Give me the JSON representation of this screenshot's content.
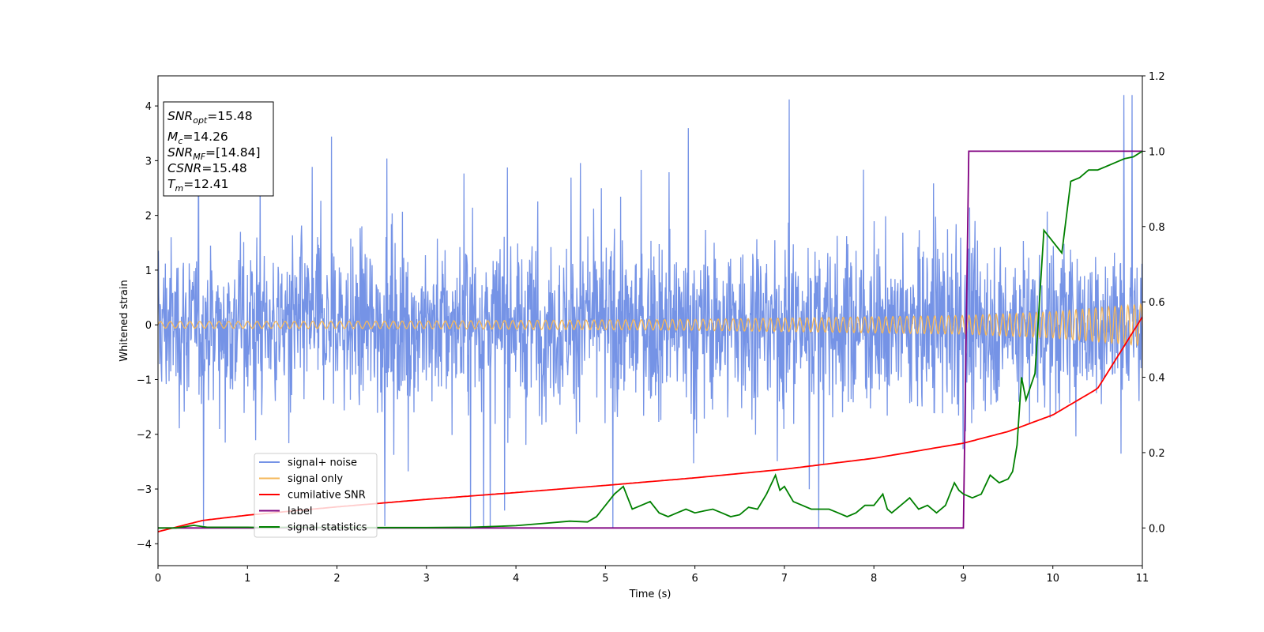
{
  "chart_data": {
    "type": "line",
    "xlabel": "Time (s)",
    "ylabel": "Whitened strain",
    "xlim": [
      0,
      11
    ],
    "ylim": [
      -4.4,
      4.55
    ],
    "y2lim": [
      -0.1,
      1.2
    ],
    "xticks": [
      "0",
      "1",
      "2",
      "3",
      "4",
      "5",
      "6",
      "7",
      "8",
      "9",
      "10",
      "11"
    ],
    "yticks": [
      "−4",
      "−3",
      "−2",
      "−1",
      "0",
      "1",
      "2",
      "3",
      "4"
    ],
    "y2ticks": [
      "0.0",
      "0.2",
      "0.4",
      "0.6",
      "0.8",
      "1.0",
      "1.2"
    ],
    "grid": false,
    "legend_position": "lower-left",
    "annotation": {
      "snr_opt": {
        "base": "SNR",
        "sub": "opt",
        "value": "=15.48"
      },
      "mc": {
        "base": "M",
        "sub": "c",
        "value": "=14.26"
      },
      "snr_mf": {
        "base": "SNR",
        "sub": "MF",
        "value": "=[14.84]"
      },
      "csnr": {
        "base": "CSNR",
        "value": "=15.48"
      },
      "tm": {
        "base": "T",
        "sub": "m",
        "value": "=12.41"
      }
    },
    "series": [
      {
        "name": "signal+ noise",
        "color": "#7593e6",
        "axis": "left",
        "description": "whitened noise with signal, amplitude roughly within -3.7 to 4.2 across 0-11 s",
        "envelope": {
          "x": [
            0,
            11
          ],
          "low": -3.7,
          "high": 4.2
        }
      },
      {
        "name": "signal only",
        "color": "#f5b75a",
        "axis": "left",
        "description": "chirp oscillation, amplitude growing with time",
        "amplitude": {
          "x": [
            0,
            3,
            6,
            9,
            10,
            11
          ],
          "y": [
            0.06,
            0.07,
            0.1,
            0.17,
            0.24,
            0.38
          ]
        }
      },
      {
        "name": "cumilative SNR",
        "color": "#ff0000",
        "axis": "right",
        "x": [
          0,
          0.5,
          1,
          2,
          3,
          4,
          5,
          6,
          7,
          8,
          9,
          9.5,
          10,
          10.5,
          11
        ],
        "y": [
          -0.01,
          0.02,
          0.034,
          0.056,
          0.076,
          0.094,
          0.113,
          0.133,
          0.156,
          0.185,
          0.225,
          0.256,
          0.3,
          0.37,
          0.56
        ]
      },
      {
        "name": "label",
        "color": "#800080",
        "axis": "right",
        "x": [
          0,
          9,
          9.06,
          11
        ],
        "y": [
          0,
          0,
          1,
          1
        ]
      },
      {
        "name": "signal statistics",
        "color": "#008000",
        "axis": "right",
        "x": [
          0,
          0.2,
          0.4,
          0.55,
          0.8,
          1.0,
          1.2,
          1.5,
          2.0,
          2.5,
          3.0,
          3.5,
          4.0,
          4.3,
          4.5,
          4.6,
          4.8,
          4.9,
          5.0,
          5.1,
          5.2,
          5.3,
          5.4,
          5.5,
          5.6,
          5.7,
          5.8,
          5.9,
          6.0,
          6.1,
          6.2,
          6.3,
          6.4,
          6.5,
          6.6,
          6.7,
          6.8,
          6.9,
          6.95,
          7.0,
          7.1,
          7.2,
          7.3,
          7.4,
          7.5,
          7.6,
          7.7,
          7.8,
          7.9,
          8.0,
          8.1,
          8.15,
          8.2,
          8.3,
          8.4,
          8.5,
          8.6,
          8.7,
          8.8,
          8.9,
          8.95,
          9.0,
          9.1,
          9.2,
          9.3,
          9.4,
          9.5,
          9.55,
          9.6,
          9.65,
          9.7,
          9.8,
          9.9,
          10.0,
          10.1,
          10.2,
          10.3,
          10.4,
          10.5,
          10.6,
          10.7,
          10.8,
          10.9,
          11.0
        ],
        "y": [
          0,
          0,
          0.007,
          0.002,
          0.002,
          0.002,
          0.001,
          0.002,
          0.001,
          0.001,
          0.001,
          0.002,
          0.006,
          0.012,
          0.016,
          0.018,
          0.016,
          0.03,
          0.06,
          0.09,
          0.11,
          0.05,
          0.06,
          0.07,
          0.04,
          0.03,
          0.04,
          0.05,
          0.04,
          0.045,
          0.05,
          0.04,
          0.03,
          0.035,
          0.055,
          0.05,
          0.09,
          0.14,
          0.1,
          0.11,
          0.07,
          0.06,
          0.05,
          0.05,
          0.05,
          0.04,
          0.03,
          0.04,
          0.06,
          0.06,
          0.09,
          0.05,
          0.04,
          0.06,
          0.08,
          0.05,
          0.06,
          0.04,
          0.06,
          0.12,
          0.1,
          0.09,
          0.08,
          0.09,
          0.14,
          0.12,
          0.13,
          0.15,
          0.22,
          0.4,
          0.34,
          0.41,
          0.79,
          0.76,
          0.73,
          0.92,
          0.93,
          0.95,
          0.95,
          0.96,
          0.97,
          0.98,
          0.985,
          1.0
        ]
      }
    ]
  }
}
